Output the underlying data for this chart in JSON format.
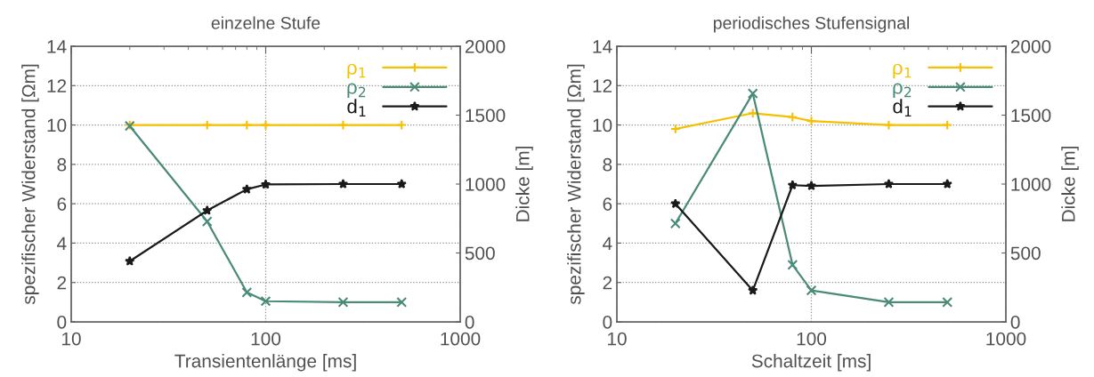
{
  "chart_data": [
    {
      "type": "line",
      "title": "einzelne Stufe",
      "xlabel": "Transientenlänge [ms]",
      "ylabel": "spezifischer Widerstand [Ωm]",
      "y2label": "Dicke [m]",
      "log": "x",
      "xlim": [
        10,
        1000
      ],
      "xticks": [
        10,
        100,
        1000
      ],
      "ylim": [
        0,
        14
      ],
      "yticks": [
        0,
        2,
        4,
        6,
        8,
        10,
        12,
        14
      ],
      "y2lim": [
        0,
        2000
      ],
      "y2ticks": [
        0,
        500,
        1000,
        1500,
        2000
      ],
      "grid": true,
      "legend": "top right",
      "line_style": "solid",
      "x": [
        20,
        50,
        80,
        100,
        250,
        500
      ],
      "series": [
        {
          "name": "ρ$_{1}$",
          "color": "#f5c000",
          "marker": "cross",
          "values": [
            10,
            10,
            10,
            10,
            10,
            10
          ]
        },
        {
          "name": "ρ$_{2}$",
          "color": "#4a8a78",
          "marker": "x",
          "values": [
            9.95,
            5.1,
            1.5,
            1.05,
            1.0,
            1.0
          ]
        },
        {
          "name": "d$_{1}$",
          "color": "#1a1a1a",
          "marker": "star",
          "axis": "y2",
          "values": [
            440,
            808,
            962,
            997,
            1000,
            1000
          ]
        }
      ]
    },
    {
      "type": "line",
      "title": "periodisches Stufensignal",
      "xlabel": "Schaltzeit [ms]",
      "ylabel": "spezifischer Widerstand [Ωm]",
      "y2label": "Dicke [m]",
      "log": "x",
      "xlim": [
        10,
        1000
      ],
      "xticks": [
        10,
        100,
        1000
      ],
      "ylim": [
        0,
        14
      ],
      "yticks": [
        0,
        2,
        4,
        6,
        8,
        10,
        12,
        14
      ],
      "y2lim": [
        0,
        2000
      ],
      "y2ticks": [
        0,
        500,
        1000,
        1500,
        2000
      ],
      "grid": true,
      "legend": "top right",
      "line_style": "solid",
      "x": [
        20,
        50,
        80,
        100,
        250,
        500
      ],
      "series": [
        {
          "name": "ρ$_{1}$",
          "color": "#f5c000",
          "marker": "cross",
          "values": [
            9.8,
            10.6,
            10.4,
            10.2,
            10.0,
            10.0
          ]
        },
        {
          "name": "ρ$_{2}$",
          "color": "#4a8a78",
          "marker": "x",
          "values": [
            5.0,
            11.6,
            2.9,
            1.6,
            1.0,
            1.0
          ]
        },
        {
          "name": "d$_{1}$",
          "color": "#1a1a1a",
          "marker": "star",
          "axis": "y2",
          "values": [
            857,
            228,
            992,
            987,
            1000,
            1000
          ]
        }
      ]
    }
  ]
}
